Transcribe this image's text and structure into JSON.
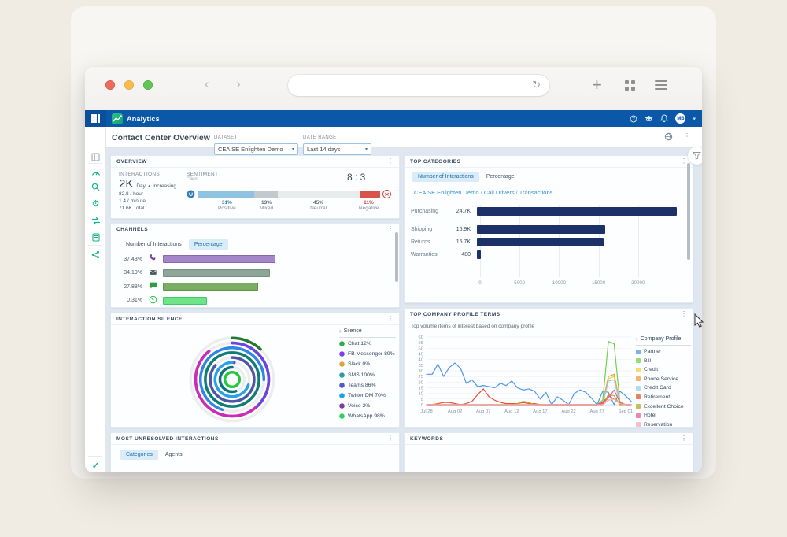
{
  "browser": {
    "url_value": ""
  },
  "app_header": {
    "product_name": "Analytics",
    "avatar_initials": "MB"
  },
  "toolbar": {
    "page_title": "Contact Center Overview",
    "dataset": {
      "label": "DATASET",
      "value": "CEA SE Enlighten Demo"
    },
    "date_range": {
      "label": "DATE RANGE",
      "value": "Last 14 days"
    }
  },
  "panels": {
    "overview": {
      "title": "OVERVIEW",
      "interactions": {
        "label": "INTERACTIONS",
        "value": "2K",
        "trend_prefix": "Day",
        "trend_arrow": "▲",
        "trend_suffix": "Increasing",
        "per_hour": "82.8 / hour",
        "per_minute": "1.4 / minute",
        "total": "71.6K Total"
      },
      "sentiment": {
        "label": "SENTIMENT",
        "sublabel": "Client",
        "ratio": "8 : 3"
      }
    },
    "channels": {
      "title": "CHANNELS",
      "tabs": [
        "Number of Interactions",
        "Percentage"
      ],
      "active_tab": "Percentage"
    },
    "interaction_silence": {
      "title": "INTERACTION SILENCE",
      "legend_title": "Silence"
    },
    "most_unresolved": {
      "title": "MOST UNRESOLVED INTERACTIONS",
      "tabs": [
        "Categories",
        "Agents"
      ],
      "active_tab": "Categories"
    },
    "top_categories": {
      "title": "TOP CATEGORIES",
      "tabs": [
        "Number of Interactions",
        "Percentage"
      ],
      "active_tab": "Number of Interactions",
      "breadcrumb": [
        "CEA SE Enlighten Demo",
        "Call Drivers",
        "Transactions"
      ]
    },
    "profile_terms": {
      "title": "TOP COMPANY PROFILE TERMS",
      "subtitle": "Top volume items of interest based on company profile",
      "legend_title": "Company Profile"
    },
    "keywords": {
      "title": "KEYWORDS"
    }
  },
  "chart_data": [
    {
      "id": "sentiment",
      "type": "bar",
      "title": "Client sentiment ratio",
      "ratio": "8 : 3",
      "categories": [
        "Positive",
        "Mixed",
        "Neutral",
        "Negative"
      ],
      "values": [
        31,
        13,
        45,
        11
      ],
      "labels": [
        "31%",
        "13%",
        "45%",
        "11%"
      ],
      "colors": [
        "#8ec4e2",
        "#c3c9ce",
        "#e9eced",
        "#d9544a"
      ],
      "label_colors": [
        "#2e7fb5",
        "#5a6771",
        "#5a6771",
        "#c9463c"
      ]
    },
    {
      "id": "channels",
      "type": "bar",
      "categories": [
        "Voice",
        "Email",
        "Chat",
        "WhatsApp",
        "Twitter"
      ],
      "values": [
        37.43,
        34.19,
        27.88,
        0.31,
        null
      ],
      "labels": [
        "37.43%",
        "34.19%",
        "27.88%",
        "0.31%",
        ""
      ],
      "colors": [
        "#a587c9",
        "#8fa598",
        "#7aad62",
        "#6fe388",
        "#9b8df0"
      ],
      "border_colors": [
        "#8a67b3",
        "#74907f",
        "#5f954b",
        "#3ecb67",
        "#c95fd6"
      ],
      "icons": [
        "voice-icon",
        "email-icon",
        "chat-icon",
        "whatsapp-icon",
        "twitter-icon"
      ],
      "icon_colors": [
        "#7a3f9d",
        "#455a54",
        "#2f9e3f",
        "#25c13e",
        "#4f8fe8"
      ]
    },
    {
      "id": "interaction_silence",
      "type": "radial",
      "legend_title": "Silence",
      "items": [
        {
          "label": "Chat",
          "pct": 12,
          "color": "#2fae4a",
          "ring_color": "#1f7a2e",
          "r": 51,
          "start": 0
        },
        {
          "label": "FB Messenger",
          "pct": 89,
          "color": "#7b3ff2",
          "ring_color": "#b92fc0",
          "r": 45,
          "start": 0
        },
        {
          "label": "Slack",
          "pct": 0,
          "color": "#e0a23c",
          "ring_color": "#e0a23c",
          "r": 39,
          "start": 0
        },
        {
          "label": "SMS",
          "pct": 100,
          "color": "#2e9aa8",
          "ring_color": "#0e7d72",
          "r": 33,
          "start": 0
        },
        {
          "label": "Teams",
          "pct": 86,
          "color": "#5059c9",
          "ring_color": "#4f55a6",
          "r": 27,
          "start": 0
        },
        {
          "label": "Twitter DM",
          "pct": 70,
          "color": "#1da1f2",
          "ring_color": "#2e86e8",
          "r": 39,
          "start": 55
        },
        {
          "label": "Voice",
          "pct": 2,
          "color": "#7a3f9d",
          "ring_color": "#7a2f9e",
          "r": 21,
          "start": 0
        },
        {
          "label": "WhatsApp",
          "pct": 98,
          "color": "#25d366",
          "ring_color": "#22c93e",
          "r": 9,
          "start": 0
        }
      ],
      "extra_rings": [
        {
          "r": 21,
          "start": 30,
          "pct": 70,
          "color": "#2aa0e8"
        },
        {
          "r": 15,
          "start": 45,
          "pct": 55,
          "color": "#11707e"
        }
      ]
    },
    {
      "id": "top_categories",
      "type": "bar",
      "categories": [
        "Purchasing",
        "Shipping",
        "Returns",
        "Warranties"
      ],
      "values": [
        24700,
        15900,
        15700,
        480
      ],
      "labels": [
        "24.7K",
        "15.9K",
        "15.7K",
        "480"
      ],
      "x_ticks": [
        0,
        5000,
        10000,
        15000,
        20000
      ],
      "xlim": [
        0,
        25500
      ],
      "color": "#1b3168"
    },
    {
      "id": "profile_terms",
      "type": "line",
      "title": "Top volume items of interest based on company profile",
      "x_tick_labels": [
        "Jul 28",
        "Aug 02",
        "Aug 07",
        "Aug 12",
        "Aug 17",
        "Aug 22",
        "Aug 27",
        "Sep 01"
      ],
      "x_tick_indices": [
        0,
        5,
        10,
        15,
        20,
        25,
        30,
        35
      ],
      "ylim": [
        0,
        60
      ],
      "y_step": 5,
      "legend_title": "Company Profile",
      "series": [
        {
          "name": "Partner",
          "color": "#4e97e8",
          "values": [
            27,
            27,
            36,
            25,
            33,
            37,
            32,
            19,
            22,
            16,
            17,
            16,
            15,
            19,
            17,
            21,
            15,
            13,
            14,
            12,
            5,
            11,
            0,
            7,
            4,
            0,
            10,
            13,
            11,
            6,
            0,
            12,
            11,
            0,
            12,
            8,
            3
          ]
        },
        {
          "name": "Bill",
          "color": "#6fd24b",
          "values": [
            0,
            0,
            0,
            0,
            0,
            0,
            0,
            0,
            0,
            0,
            0,
            0,
            0,
            0,
            0,
            0,
            0,
            0,
            0,
            0,
            0,
            0,
            0,
            0,
            0,
            0,
            0,
            0,
            0,
            0,
            0,
            4,
            56,
            54,
            3,
            0,
            0
          ]
        },
        {
          "name": "Credit",
          "color": "#f2d33c",
          "values": [
            0,
            0,
            0,
            0,
            0,
            0,
            0,
            0,
            0,
            0,
            0,
            0,
            0,
            0,
            0,
            0,
            0,
            0,
            0,
            0,
            0,
            0,
            0,
            0,
            0,
            0,
            0,
            0,
            0,
            0,
            0,
            0,
            23,
            25,
            1,
            0,
            0
          ]
        },
        {
          "name": "Phone Service",
          "color": "#f59b3d",
          "values": [
            0,
            0,
            0,
            0,
            0,
            0,
            0,
            0,
            0,
            0,
            0,
            0,
            0,
            0,
            0,
            0,
            0,
            0,
            0,
            0,
            0,
            0,
            0,
            0,
            0,
            0,
            0,
            0,
            0,
            0,
            0,
            2,
            25,
            27,
            2,
            0,
            0
          ]
        },
        {
          "name": "Credit Card",
          "color": "#8fd4e8",
          "values": [
            0,
            0,
            0,
            0,
            0,
            0,
            0,
            0,
            0,
            0,
            0,
            0,
            0,
            0,
            0,
            0,
            0,
            0,
            0,
            0,
            0,
            0,
            0,
            0,
            0,
            0,
            0,
            0,
            0,
            0,
            0,
            0,
            21,
            22,
            1,
            0,
            0
          ]
        },
        {
          "name": "Retirement",
          "color": "#e8502a",
          "values": [
            0,
            0,
            1,
            2,
            2,
            1,
            0,
            1,
            3,
            9,
            14,
            7,
            4,
            2,
            1,
            1,
            1,
            2,
            1,
            1,
            0,
            0,
            0,
            0,
            0,
            0,
            0,
            0,
            0,
            0,
            0,
            2,
            8,
            5,
            1,
            0,
            0
          ]
        },
        {
          "name": "Excellent Choice",
          "color": "#b5a821",
          "values": [
            0,
            0,
            0,
            0,
            0,
            0,
            0,
            0,
            0,
            0,
            0,
            0,
            0,
            0,
            0,
            0,
            1,
            3,
            2,
            0,
            0,
            0,
            0,
            0,
            0,
            0,
            0,
            0,
            0,
            0,
            0,
            0,
            9,
            8,
            0,
            0,
            0
          ]
        },
        {
          "name": "Hotel",
          "color": "#ef5a96",
          "values": [
            0,
            0,
            0,
            0,
            0,
            0,
            0,
            0,
            0,
            0,
            0,
            0,
            0,
            0,
            0,
            0,
            0,
            0,
            0,
            0,
            0,
            0,
            0,
            0,
            0,
            0,
            0,
            0,
            0,
            0,
            0,
            1,
            6,
            13,
            2,
            0,
            0
          ]
        },
        {
          "name": "Reservation",
          "color": "#f4a9b8",
          "values": [
            0,
            0,
            0,
            0,
            0,
            0,
            0,
            0,
            0,
            0,
            0,
            0,
            0,
            0,
            0,
            0,
            0,
            0,
            0,
            0,
            0,
            0,
            0,
            0,
            0,
            0,
            0,
            0,
            0,
            0,
            0,
            0,
            4,
            5,
            1,
            0,
            0
          ]
        }
      ]
    }
  ]
}
